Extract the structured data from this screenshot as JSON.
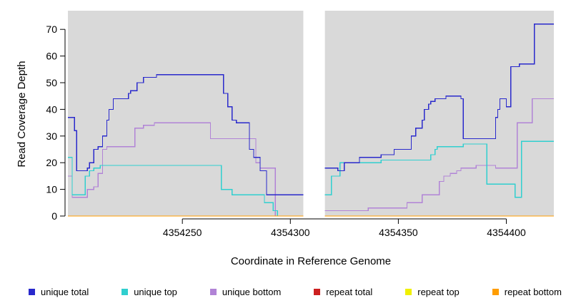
{
  "chart_data": {
    "type": "line",
    "subtype": "step",
    "title": "",
    "xlabel": "Coordinate in Reference Genome",
    "ylabel": "Read Coverage Depth",
    "xlim": [
      4354197,
      4354422
    ],
    "ylim": [
      0,
      77
    ],
    "x_ticks": [
      4354250,
      4354300,
      4354350,
      4354400
    ],
    "y_ticks": [
      0,
      10,
      20,
      30,
      40,
      50,
      60,
      70
    ],
    "plot_bg": "#d9d9d9",
    "gap_region": {
      "from": 4354306,
      "to": 4354316
    },
    "grid": false,
    "legend_position": "bottom",
    "legend": [
      {
        "label": "unique total",
        "color": "#2929cc"
      },
      {
        "label": "unique top",
        "color": "#30cfcf"
      },
      {
        "label": "unique bottom",
        "color": "#b183d6"
      },
      {
        "label": "repeat total",
        "color": "#cc2020"
      },
      {
        "label": "repeat top",
        "color": "#f0f000"
      },
      {
        "label": "repeat bottom",
        "color": "#ff9d00"
      }
    ],
    "series": [
      {
        "name": "repeat total",
        "color": "#cc2020",
        "segments": [
          [
            [
              4354197,
              0
            ],
            [
              4354306,
              0
            ]
          ],
          [
            [
              4354316,
              0
            ],
            [
              4354422,
              0
            ]
          ]
        ]
      },
      {
        "name": "repeat top",
        "color": "#f0f000",
        "segments": [
          [
            [
              4354197,
              0
            ],
            [
              4354306,
              0
            ]
          ],
          [
            [
              4354316,
              0
            ],
            [
              4354422,
              0
            ]
          ]
        ]
      },
      {
        "name": "unique bottom",
        "color": "#b183d6",
        "segments": [
          [
            [
              4354197,
              15
            ],
            [
              4354199,
              7
            ],
            [
              4354205,
              7
            ],
            [
              4354206,
              10
            ],
            [
              4354209,
              11
            ],
            [
              4354211,
              16
            ],
            [
              4354213,
              25
            ],
            [
              4354215,
              26
            ],
            [
              4354226,
              26
            ],
            [
              4354228,
              33
            ],
            [
              4354232,
              34
            ],
            [
              4354237,
              35
            ],
            [
              4354261,
              35
            ],
            [
              4354263,
              29
            ],
            [
              4354283,
              29
            ],
            [
              4354284,
              20
            ],
            [
              4354286,
              18
            ],
            [
              4354292,
              18
            ],
            [
              4354293,
              0
            ]
          ],
          [
            [
              4354316,
              2
            ],
            [
              4354335,
              2
            ],
            [
              4354336,
              3
            ],
            [
              4354353,
              3
            ],
            [
              4354354,
              5
            ],
            [
              4354360,
              5
            ],
            [
              4354361,
              8
            ],
            [
              4354368,
              8
            ],
            [
              4354369,
              13
            ],
            [
              4354371,
              15
            ],
            [
              4354374,
              16
            ],
            [
              4354377,
              17
            ],
            [
              4354379,
              18
            ],
            [
              4354385,
              18
            ],
            [
              4354386,
              19
            ],
            [
              4354394,
              19
            ],
            [
              4354395,
              18
            ],
            [
              4354404,
              18
            ],
            [
              4354405,
              35
            ],
            [
              4354411,
              35
            ],
            [
              4354412,
              44
            ],
            [
              4354422,
              44
            ]
          ]
        ]
      },
      {
        "name": "unique top",
        "color": "#30cfcf",
        "segments": [
          [
            [
              4354197,
              22
            ],
            [
              4354199,
              8
            ],
            [
              4354204,
              8
            ],
            [
              4354205,
              15
            ],
            [
              4354207,
              17
            ],
            [
              4354209,
              18
            ],
            [
              4354212,
              19
            ],
            [
              4354267,
              19
            ],
            [
              4354268,
              10
            ],
            [
              4354272,
              10
            ],
            [
              4354273,
              8
            ],
            [
              4354287,
              8
            ],
            [
              4354288,
              5
            ],
            [
              4354291,
              5
            ],
            [
              4354292,
              2
            ],
            [
              4354294,
              0
            ]
          ],
          [
            [
              4354316,
              8
            ],
            [
              4354318,
              8
            ],
            [
              4354319,
              15
            ],
            [
              4354322,
              15
            ],
            [
              4354323,
              20
            ],
            [
              4354341,
              20
            ],
            [
              4354342,
              21
            ],
            [
              4354364,
              21
            ],
            [
              4354365,
              23
            ],
            [
              4354367,
              25
            ],
            [
              4354368,
              26
            ],
            [
              4354379,
              26
            ],
            [
              4354380,
              27
            ],
            [
              4354390,
              27
            ],
            [
              4354391,
              12
            ],
            [
              4354403,
              12
            ],
            [
              4354404,
              7
            ],
            [
              4354406,
              7
            ],
            [
              4354407,
              28
            ],
            [
              4354422,
              28
            ]
          ]
        ]
      },
      {
        "name": "unique total",
        "color": "#2929cc",
        "segments": [
          [
            [
              4354197,
              37
            ],
            [
              4354200,
              32
            ],
            [
              4354201,
              17
            ],
            [
              4354205,
              17
            ],
            [
              4354206,
              18
            ],
            [
              4354207,
              20
            ],
            [
              4354209,
              25
            ],
            [
              4354211,
              26
            ],
            [
              4354213,
              30
            ],
            [
              4354215,
              36
            ],
            [
              4354216,
              40
            ],
            [
              4354218,
              44
            ],
            [
              4354223,
              44
            ],
            [
              4354225,
              46
            ],
            [
              4354226,
              47
            ],
            [
              4354229,
              50
            ],
            [
              4354232,
              52
            ],
            [
              4354237,
              52
            ],
            [
              4354238,
              53
            ],
            [
              4354268,
              53
            ],
            [
              4354269,
              46
            ],
            [
              4354271,
              41
            ],
            [
              4354273,
              36
            ],
            [
              4354275,
              35
            ],
            [
              4354280,
              35
            ],
            [
              4354281,
              25
            ],
            [
              4354283,
              22
            ],
            [
              4354285,
              22
            ],
            [
              4354286,
              17
            ],
            [
              4354288,
              17
            ],
            [
              4354289,
              8
            ],
            [
              4354306,
              8
            ]
          ],
          [
            [
              4354316,
              18
            ],
            [
              4354321,
              18
            ],
            [
              4354322,
              17
            ],
            [
              4354324,
              17
            ],
            [
              4354325,
              20
            ],
            [
              4354331,
              20
            ],
            [
              4354332,
              22
            ],
            [
              4354341,
              22
            ],
            [
              4354342,
              23
            ],
            [
              4354347,
              23
            ],
            [
              4354348,
              25
            ],
            [
              4354355,
              25
            ],
            [
              4354356,
              30
            ],
            [
              4354358,
              33
            ],
            [
              4354360,
              33
            ],
            [
              4354361,
              36
            ],
            [
              4354362,
              40
            ],
            [
              4354364,
              42
            ],
            [
              4354365,
              43
            ],
            [
              4354367,
              44
            ],
            [
              4354371,
              44
            ],
            [
              4354372,
              45
            ],
            [
              4354378,
              45
            ],
            [
              4354379,
              44
            ],
            [
              4354380,
              29
            ],
            [
              4354394,
              29
            ],
            [
              4354395,
              37
            ],
            [
              4354396,
              40
            ],
            [
              4354397,
              44
            ],
            [
              4354399,
              44
            ],
            [
              4354400,
              41
            ],
            [
              4354402,
              56
            ],
            [
              4354405,
              56
            ],
            [
              4354406,
              57
            ],
            [
              4354412,
              57
            ],
            [
              4354413,
              72
            ],
            [
              4354422,
              72
            ]
          ]
        ]
      },
      {
        "name": "repeat bottom",
        "color": "#ff9d00",
        "segments": [
          [
            [
              4354197,
              0
            ],
            [
              4354306,
              0
            ]
          ],
          [
            [
              4354316,
              0
            ],
            [
              4354422,
              0
            ]
          ]
        ]
      }
    ]
  }
}
